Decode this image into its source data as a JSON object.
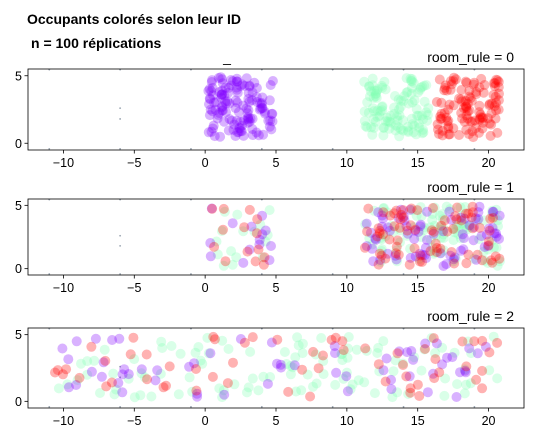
{
  "title_line1": "Occupants colorés selon leur ID",
  "title_line2": "n = 100 réplications",
  "stray_label": "_",
  "colors": {
    "id_purple": "#8000ff",
    "id_mint": "#80ffb4",
    "id_red": "#ff0000",
    "marker": "#9aa5b1"
  },
  "chart_data": [
    {
      "type": "scatter",
      "title": "room_rule = 0",
      "xlim": [
        -12.5,
        22.5
      ],
      "ylim": [
        -0.5,
        5.5
      ],
      "xticks": [
        -10,
        -5,
        0,
        5,
        10,
        15,
        20
      ],
      "yticks": [
        0,
        5
      ],
      "xtick_labels": [
        "−10",
        "−5",
        "0",
        "5",
        "10",
        "15",
        "20"
      ],
      "ytick_labels": [
        "0",
        "5"
      ],
      "series": [
        {
          "color": "#8000ff",
          "x_range": [
            0.2,
            4.8
          ],
          "y_range": [
            0.4,
            4.9
          ],
          "n": 130
        },
        {
          "color": "#80ffb4",
          "x_range": [
            11.2,
            15.8
          ],
          "y_range": [
            0.5,
            4.9
          ],
          "n": 110
        },
        {
          "color": "#ff0000",
          "x_range": [
            16.2,
            20.8
          ],
          "y_range": [
            0.4,
            4.9
          ],
          "n": 110
        }
      ]
    },
    {
      "type": "scatter",
      "title": "room_rule = 1",
      "xlim": [
        -12.5,
        22.5
      ],
      "ylim": [
        -0.5,
        5.5
      ],
      "xticks": [
        -10,
        -5,
        0,
        5,
        10,
        15,
        20
      ],
      "yticks": [
        0,
        5
      ],
      "xtick_labels": [
        "−10",
        "−5",
        "0",
        "5",
        "10",
        "15",
        "20"
      ],
      "ytick_labels": [
        "0",
        "5"
      ],
      "series": [
        {
          "color": "#80ffb4",
          "x_range": [
            0.2,
            4.8
          ],
          "y_range": [
            0.2,
            4.9
          ],
          "n": 16
        },
        {
          "color": "#8000ff",
          "x_range": [
            0.2,
            4.8
          ],
          "y_range": [
            0.2,
            4.9
          ],
          "n": 14
        },
        {
          "color": "#ff0000",
          "x_range": [
            0.2,
            4.8
          ],
          "y_range": [
            0.2,
            4.9
          ],
          "n": 14
        },
        {
          "color": "#80ffb4",
          "x_range": [
            11.2,
            20.8
          ],
          "y_range": [
            0.2,
            4.9
          ],
          "n": 90
        },
        {
          "color": "#8000ff",
          "x_range": [
            11.2,
            20.8
          ],
          "y_range": [
            0.2,
            4.9
          ],
          "n": 75
        },
        {
          "color": "#ff0000",
          "x_range": [
            11.2,
            20.8
          ],
          "y_range": [
            0.2,
            4.9
          ],
          "n": 75
        }
      ]
    },
    {
      "type": "scatter",
      "title": "room_rule = 2",
      "xlim": [
        -12.5,
        22.5
      ],
      "ylim": [
        -0.5,
        5.5
      ],
      "xticks": [
        -10,
        -5,
        0,
        5,
        10,
        15,
        20
      ],
      "yticks": [
        0,
        5
      ],
      "xtick_labels": [
        "−10",
        "−5",
        "0",
        "5",
        "10",
        "15",
        "20"
      ],
      "ytick_labels": [
        "0",
        "5"
      ],
      "series": [
        {
          "color": "#80ffb4",
          "x_range": [
            -10.8,
            20.8
          ],
          "y_range": [
            0.3,
            4.9
          ],
          "n": 110
        },
        {
          "color": "#8000ff",
          "x_range": [
            -10.8,
            20.8
          ],
          "y_range": [
            0.3,
            4.9
          ],
          "n": 60
        },
        {
          "color": "#ff0000",
          "x_range": [
            -10.8,
            20.8
          ],
          "y_range": [
            0.3,
            4.9
          ],
          "n": 60
        }
      ]
    }
  ]
}
